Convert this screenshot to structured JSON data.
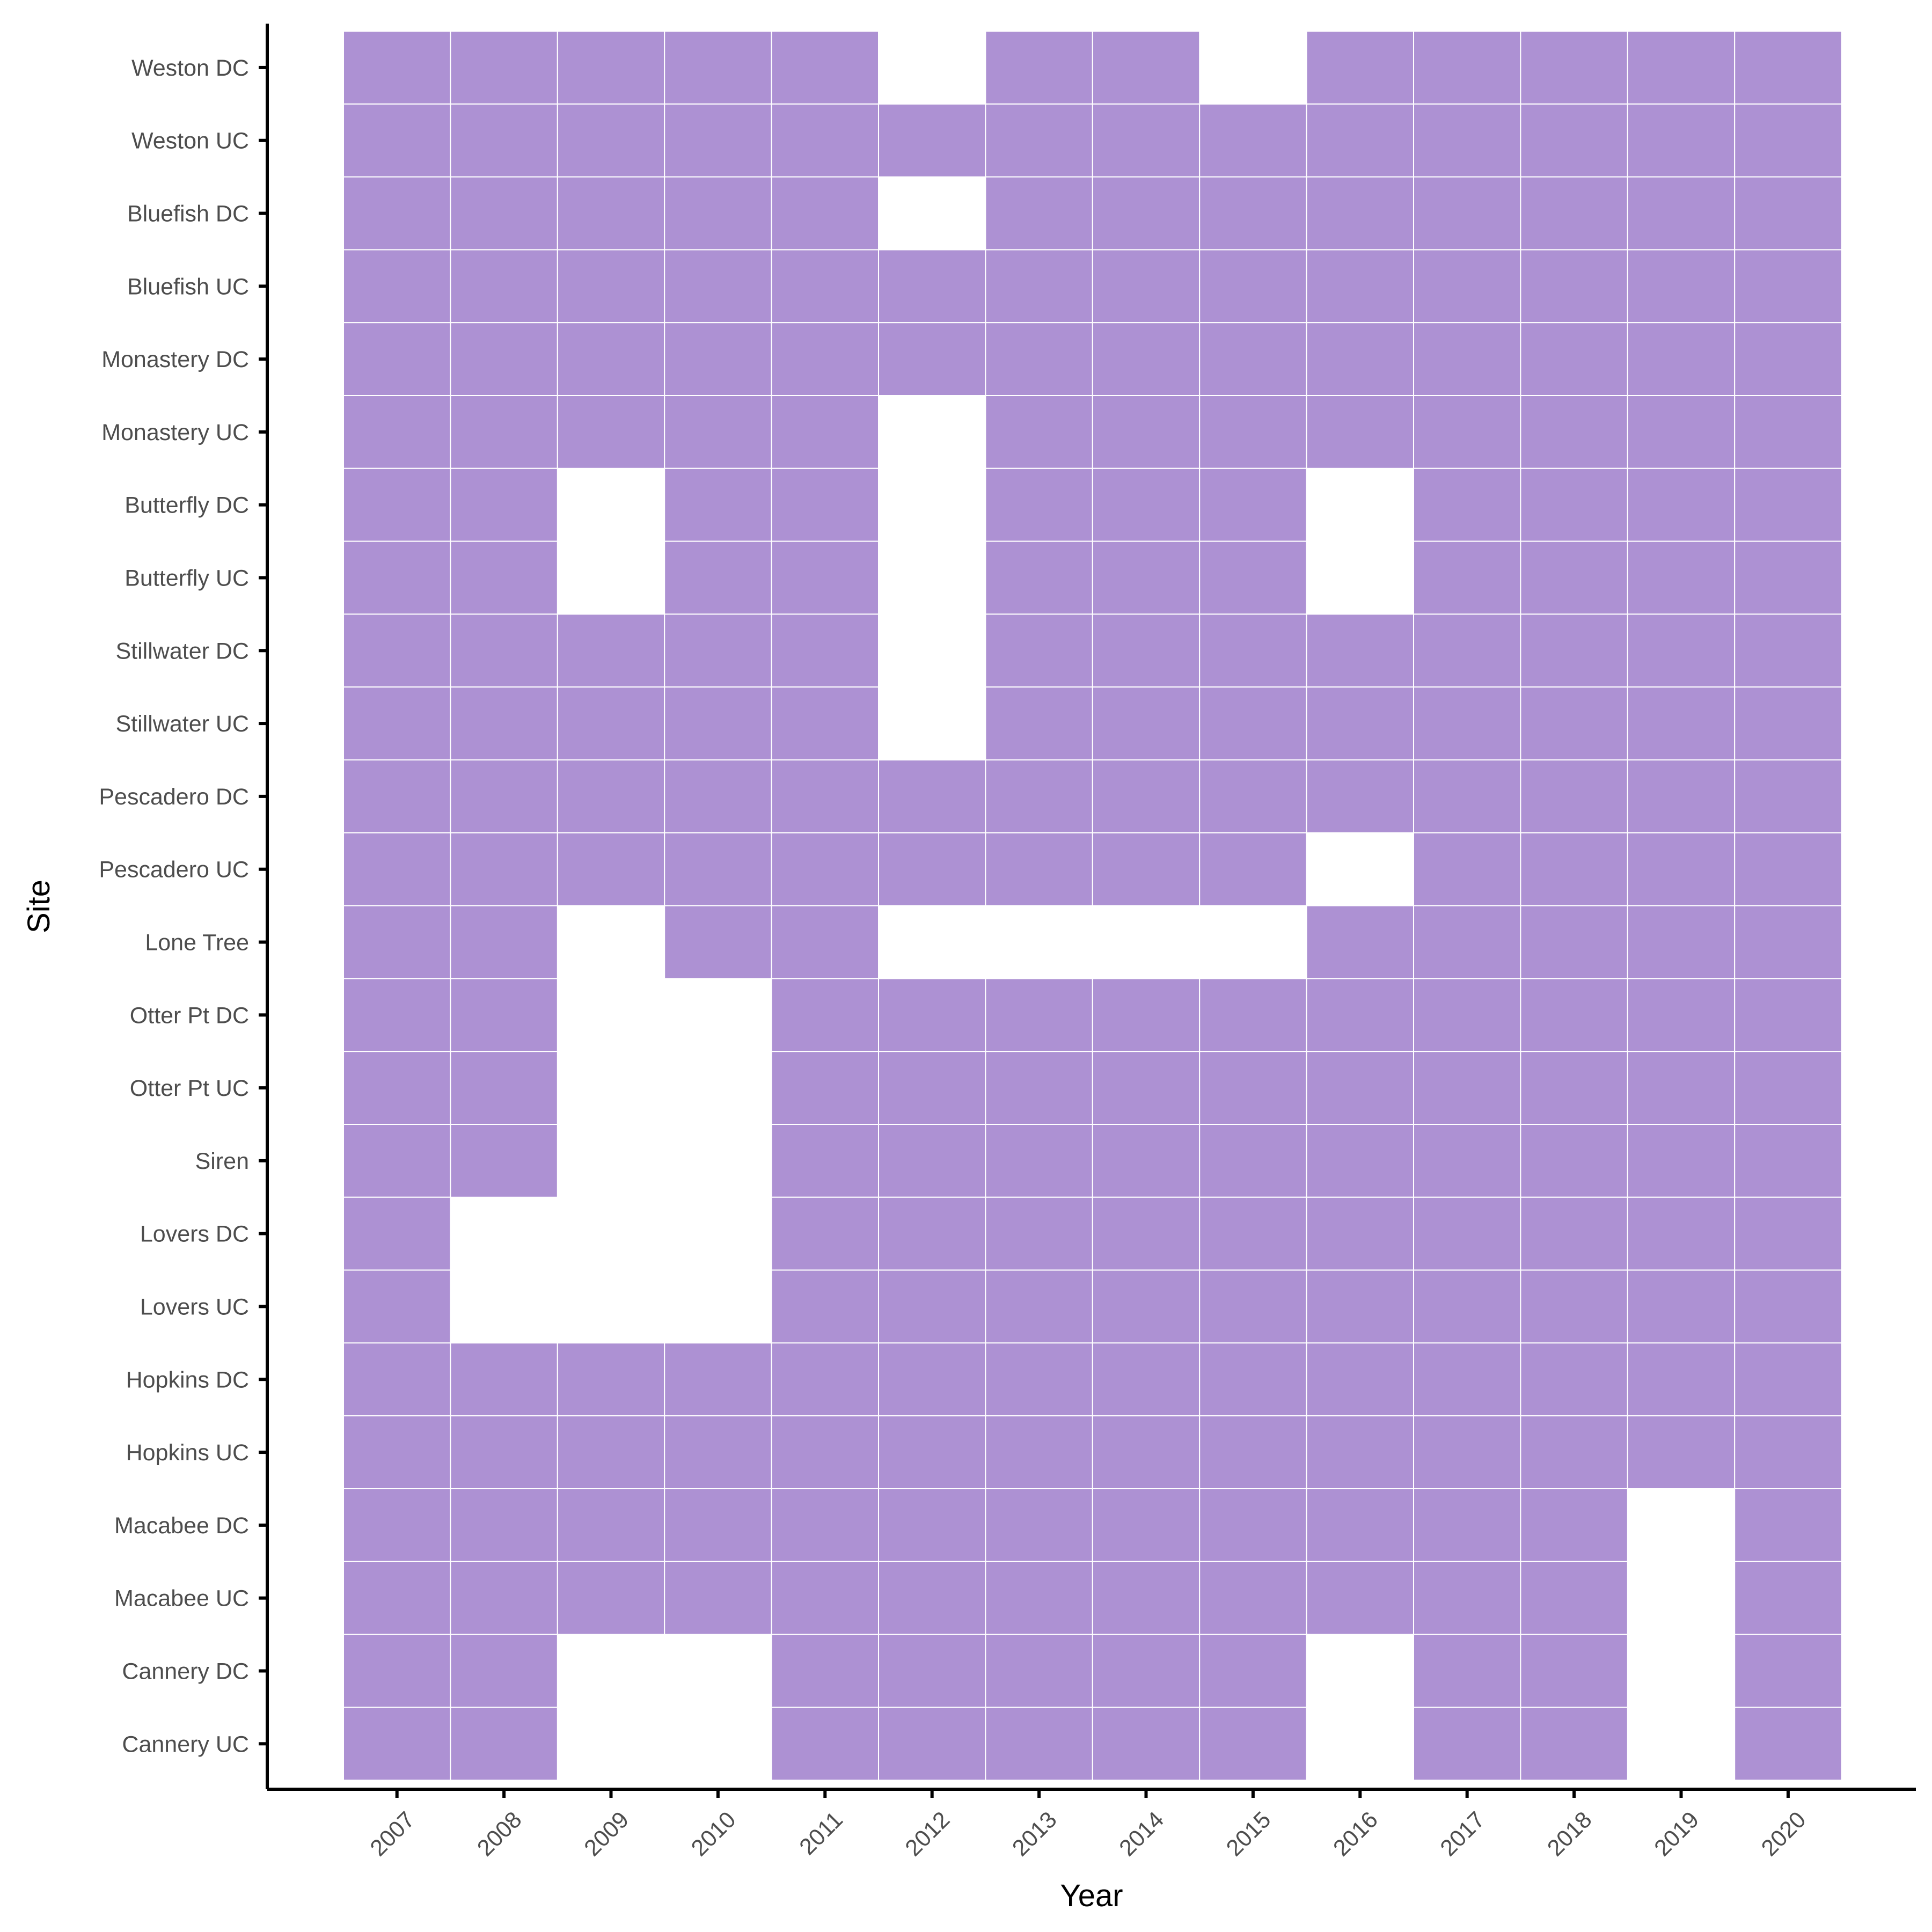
{
  "chart_data": {
    "type": "heatmap",
    "title": "",
    "xlabel": "Year",
    "ylabel": "Site",
    "grid": false,
    "legend": "none",
    "fill_color": "#ad91d3",
    "x": [
      "2007",
      "2008",
      "2009",
      "2010",
      "2011",
      "2012",
      "2013",
      "2014",
      "2015",
      "2016",
      "2017",
      "2018",
      "2019",
      "2020"
    ],
    "y": [
      "Weston DC",
      "Weston UC",
      "Bluefish DC",
      "Bluefish UC",
      "Monastery DC",
      "Monastery UC",
      "Butterfly DC",
      "Butterfly UC",
      "Stillwater DC",
      "Stillwater UC",
      "Pescadero DC",
      "Pescadero UC",
      "Lone Tree",
      "Otter Pt DC",
      "Otter Pt UC",
      "Siren",
      "Lovers DC",
      "Lovers UC",
      "Hopkins DC",
      "Hopkins UC",
      "Macabee DC",
      "Macabee UC",
      "Cannery DC",
      "Cannery UC"
    ],
    "values": [
      [
        1,
        1,
        1,
        1,
        1,
        0,
        1,
        1,
        0,
        1,
        1,
        1,
        1,
        1
      ],
      [
        1,
        1,
        1,
        1,
        1,
        1,
        1,
        1,
        1,
        1,
        1,
        1,
        1,
        1
      ],
      [
        1,
        1,
        1,
        1,
        1,
        0,
        1,
        1,
        1,
        1,
        1,
        1,
        1,
        1
      ],
      [
        1,
        1,
        1,
        1,
        1,
        1,
        1,
        1,
        1,
        1,
        1,
        1,
        1,
        1
      ],
      [
        1,
        1,
        1,
        1,
        1,
        1,
        1,
        1,
        1,
        1,
        1,
        1,
        1,
        1
      ],
      [
        1,
        1,
        1,
        1,
        1,
        0,
        1,
        1,
        1,
        1,
        1,
        1,
        1,
        1
      ],
      [
        1,
        1,
        0,
        1,
        1,
        0,
        1,
        1,
        1,
        0,
        1,
        1,
        1,
        1
      ],
      [
        1,
        1,
        0,
        1,
        1,
        0,
        1,
        1,
        1,
        0,
        1,
        1,
        1,
        1
      ],
      [
        1,
        1,
        1,
        1,
        1,
        0,
        1,
        1,
        1,
        1,
        1,
        1,
        1,
        1
      ],
      [
        1,
        1,
        1,
        1,
        1,
        0,
        1,
        1,
        1,
        1,
        1,
        1,
        1,
        1
      ],
      [
        1,
        1,
        1,
        1,
        1,
        1,
        1,
        1,
        1,
        1,
        1,
        1,
        1,
        1
      ],
      [
        1,
        1,
        1,
        1,
        1,
        1,
        1,
        1,
        1,
        0,
        1,
        1,
        1,
        1
      ],
      [
        1,
        1,
        0,
        1,
        1,
        0,
        0,
        0,
        0,
        1,
        1,
        1,
        1,
        1
      ],
      [
        1,
        1,
        0,
        0,
        1,
        1,
        1,
        1,
        1,
        1,
        1,
        1,
        1,
        1
      ],
      [
        1,
        1,
        0,
        0,
        1,
        1,
        1,
        1,
        1,
        1,
        1,
        1,
        1,
        1
      ],
      [
        1,
        1,
        0,
        0,
        1,
        1,
        1,
        1,
        1,
        1,
        1,
        1,
        1,
        1
      ],
      [
        1,
        0,
        0,
        0,
        1,
        1,
        1,
        1,
        1,
        1,
        1,
        1,
        1,
        1
      ],
      [
        1,
        0,
        0,
        0,
        1,
        1,
        1,
        1,
        1,
        1,
        1,
        1,
        1,
        1
      ],
      [
        1,
        1,
        1,
        1,
        1,
        1,
        1,
        1,
        1,
        1,
        1,
        1,
        1,
        1
      ],
      [
        1,
        1,
        1,
        1,
        1,
        1,
        1,
        1,
        1,
        1,
        1,
        1,
        1,
        1
      ],
      [
        1,
        1,
        1,
        1,
        1,
        1,
        1,
        1,
        1,
        1,
        1,
        1,
        0,
        1
      ],
      [
        1,
        1,
        1,
        1,
        1,
        1,
        1,
        1,
        1,
        1,
        1,
        1,
        0,
        1
      ],
      [
        1,
        1,
        0,
        0,
        1,
        1,
        1,
        1,
        1,
        0,
        1,
        1,
        0,
        1
      ],
      [
        1,
        1,
        0,
        0,
        1,
        1,
        1,
        1,
        1,
        0,
        1,
        1,
        0,
        1
      ]
    ]
  }
}
